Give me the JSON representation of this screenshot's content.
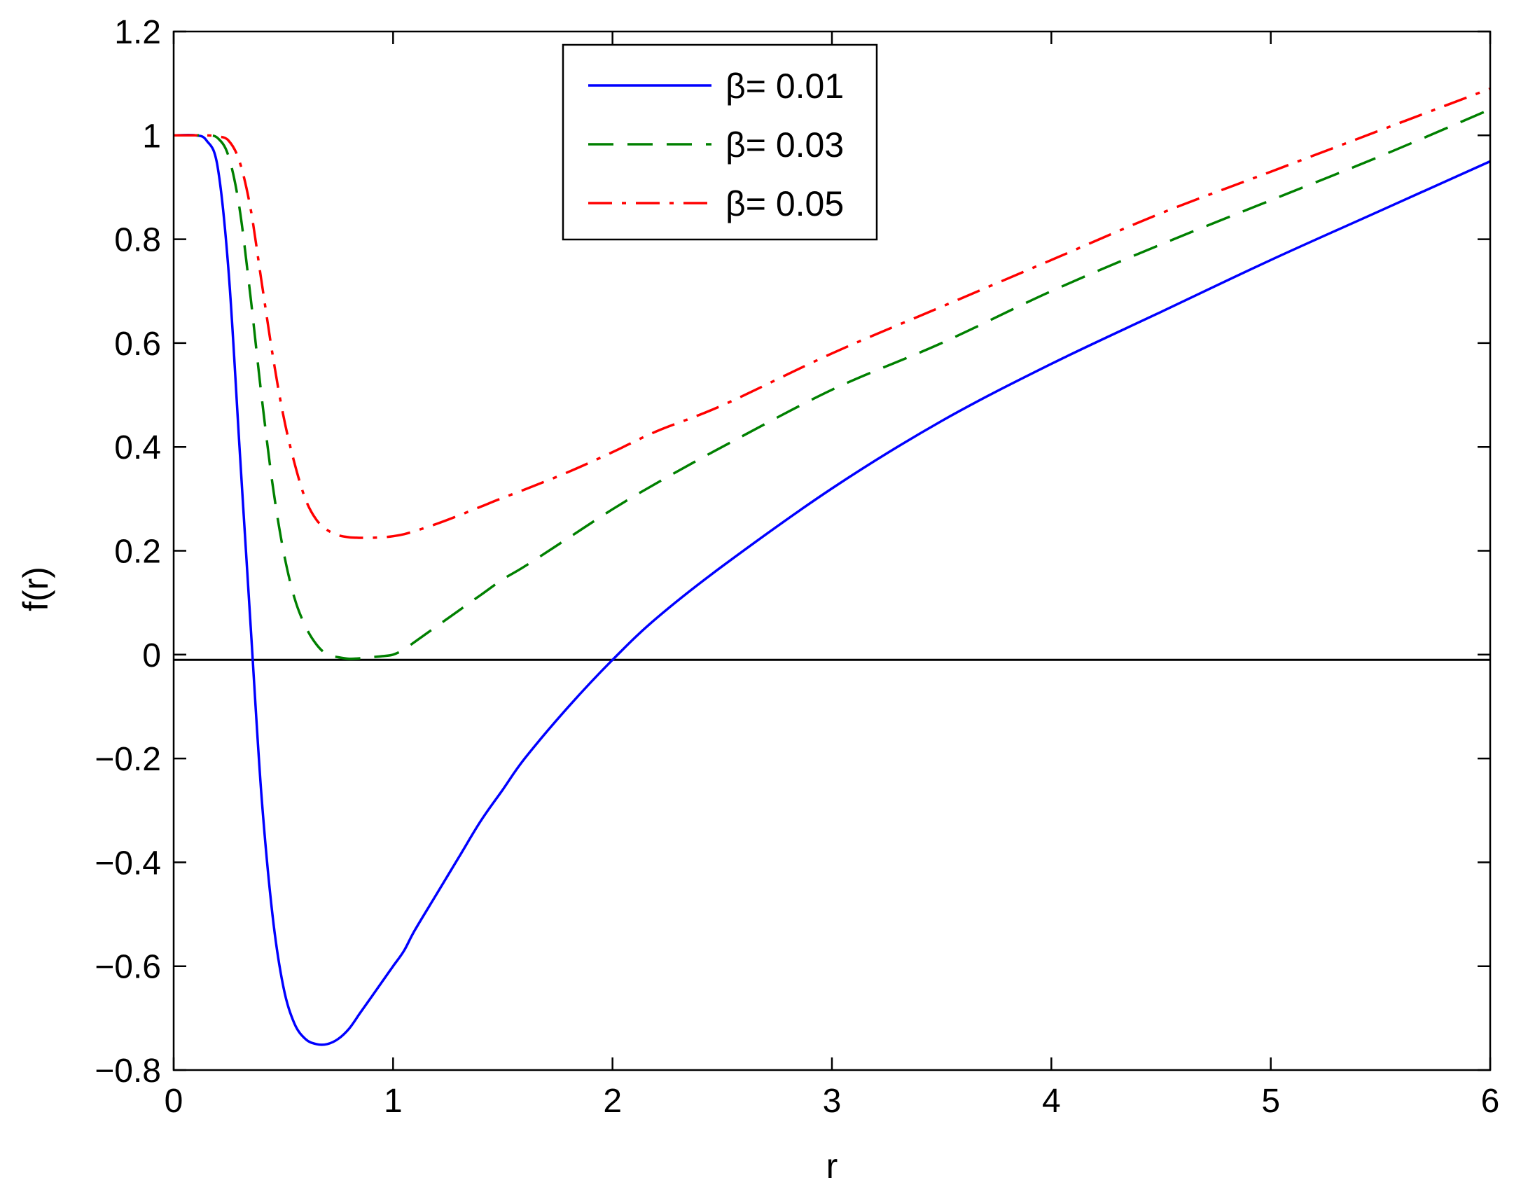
{
  "chart_data": {
    "type": "line",
    "title": "",
    "xlabel": "r",
    "ylabel": "f(r)",
    "xlim": [
      0,
      6
    ],
    "ylim": [
      -0.8,
      1.2
    ],
    "xticks": [
      0,
      1,
      2,
      3,
      4,
      5,
      6
    ],
    "xtick_labels": [
      "0",
      "1",
      "2",
      "3",
      "4",
      "5",
      "6"
    ],
    "yticks": [
      -0.8,
      -0.6,
      -0.4,
      -0.2,
      0,
      0.2,
      0.4,
      0.6,
      0.8,
      1,
      1.2
    ],
    "ytick_labels": [
      "−0.8",
      "−0.6",
      "−0.4",
      "−0.2",
      "0",
      "0.2",
      "0.4",
      "0.6",
      "0.8",
      "1",
      "1.2"
    ],
    "grid": false,
    "legend_position": "top-center",
    "reference_line": {
      "y": -0.01,
      "color": "#000000"
    },
    "x": [
      0,
      0.1,
      0.15,
      0.2,
      0.25,
      0.3,
      0.35,
      0.4,
      0.45,
      0.5,
      0.55,
      0.6,
      0.65,
      0.7,
      0.75,
      0.8,
      0.85,
      0.9,
      0.95,
      1.0,
      1.05,
      1.1,
      1.2,
      1.3,
      1.4,
      1.5,
      1.6,
      1.8,
      2.0,
      2.2,
      2.5,
      3.0,
      3.5,
      4.0,
      4.5,
      5.0,
      5.5,
      6.0
    ],
    "series": [
      {
        "name": "β= 0.01",
        "color": "#0000ff",
        "dash": "solid",
        "values": [
          1.0,
          1.0,
          0.99,
          0.94,
          0.74,
          0.4,
          0.06,
          -0.27,
          -0.5,
          -0.64,
          -0.71,
          -0.74,
          -0.75,
          -0.75,
          -0.74,
          -0.72,
          -0.69,
          -0.66,
          -0.63,
          -0.6,
          -0.57,
          -0.53,
          -0.46,
          -0.39,
          -0.32,
          -0.26,
          -0.2,
          -0.1,
          -0.01,
          0.07,
          0.17,
          0.32,
          0.45,
          0.56,
          0.66,
          0.76,
          0.855,
          0.95
        ]
      },
      {
        "name": "β= 0.03",
        "color": "#008000",
        "dash": "dashed",
        "values": [
          1.0,
          1.0,
          1.0,
          0.995,
          0.96,
          0.86,
          0.69,
          0.5,
          0.33,
          0.2,
          0.11,
          0.055,
          0.02,
          0.0,
          -0.005,
          -0.008,
          -0.007,
          -0.005,
          -0.003,
          0.0,
          0.01,
          0.025,
          0.055,
          0.085,
          0.115,
          0.145,
          0.17,
          0.225,
          0.28,
          0.33,
          0.4,
          0.51,
          0.6,
          0.7,
          0.79,
          0.875,
          0.96,
          1.05
        ]
      },
      {
        "name": "β= 0.05",
        "color": "#ff0000",
        "dash": "dashdot",
        "values": [
          1.0,
          1.0,
          1.0,
          0.998,
          0.99,
          0.95,
          0.86,
          0.72,
          0.58,
          0.46,
          0.37,
          0.3,
          0.26,
          0.24,
          0.23,
          0.226,
          0.225,
          0.225,
          0.226,
          0.228,
          0.232,
          0.238,
          0.252,
          0.268,
          0.285,
          0.302,
          0.318,
          0.352,
          0.39,
          0.43,
          0.48,
          0.58,
          0.67,
          0.76,
          0.85,
          0.93,
          1.01,
          1.09
        ]
      }
    ]
  }
}
